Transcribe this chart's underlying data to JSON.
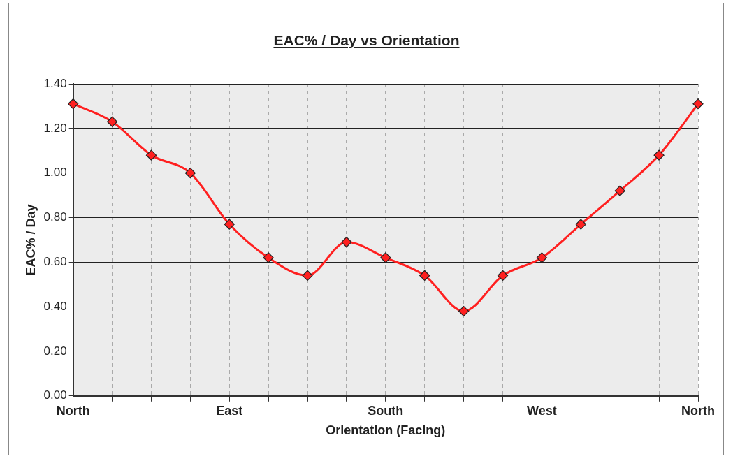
{
  "chart_data": {
    "type": "line",
    "title": "EAC% / Day vs Orientation",
    "xlabel": "Orientation (Facing)",
    "ylabel": "EAC% / Day",
    "categories": [
      "North",
      null,
      null,
      null,
      "East",
      null,
      null,
      null,
      "South",
      null,
      null,
      null,
      "West",
      null,
      null,
      null,
      "North"
    ],
    "series": [
      {
        "color": "#ff2020",
        "values": [
          1.31,
          1.23,
          1.08,
          1.0,
          0.77,
          0.62,
          0.54,
          0.69,
          0.62,
          0.54,
          0.38,
          0.54,
          0.62,
          0.77,
          0.92,
          1.08,
          1.31
        ]
      }
    ],
    "ylim": [
      0,
      1.4
    ],
    "yticks": [
      {
        "value": 0,
        "label": "0.00"
      },
      {
        "value": 0.2,
        "label": "0.20"
      },
      {
        "value": 0.4,
        "label": "0.40"
      },
      {
        "value": 0.6,
        "label": "0.60"
      },
      {
        "value": 0.8,
        "label": "0.80"
      },
      {
        "value": 1.0,
        "label": "1.00"
      },
      {
        "value": 1.2,
        "label": "1.20"
      },
      {
        "value": 1.4,
        "label": "1.40"
      }
    ],
    "grid": true,
    "marker": "diamond",
    "line_style": "solid"
  }
}
